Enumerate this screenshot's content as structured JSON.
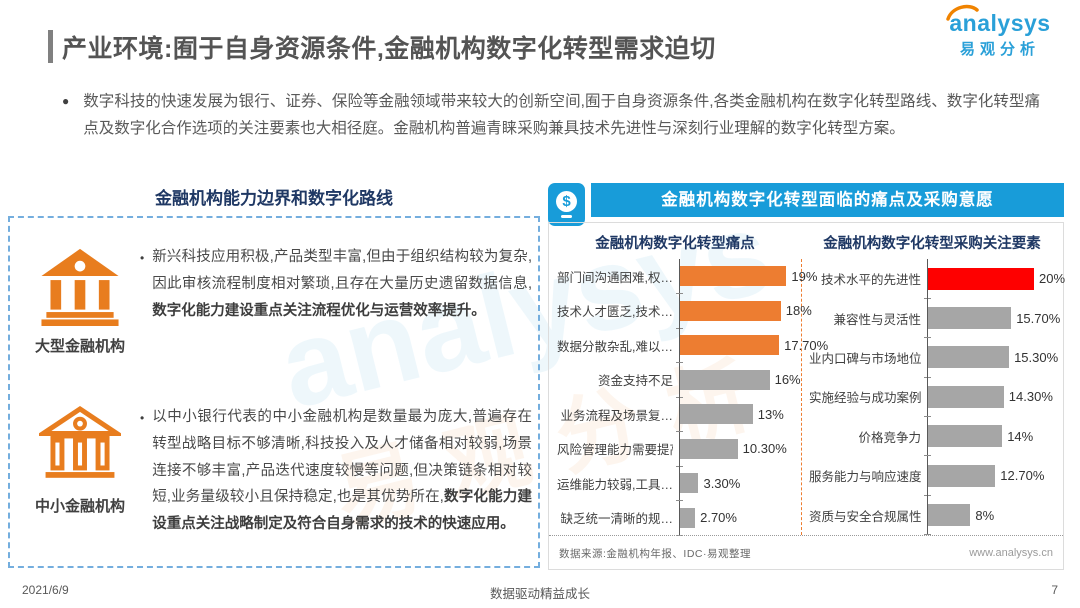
{
  "header": {
    "title": "产业环境:囿于自身资源条件,金融机构数字化转型需求迫切",
    "logo_en": "analysys",
    "logo_cn": "易观分析"
  },
  "intro": "数字科技的快速发展为银行、证券、保险等金融领域带来较大的创新空间,囿于自身资源条件,各类金融机构在数字化转型路线、数字化转型痛点及数字化合作选项的关注要素也大相径庭。金融机构普遍青睐采购兼具技术先进性与深刻行业理解的数字化转型方案。",
  "watermark": {
    "en": "analysys",
    "cn": "易观分析"
  },
  "left_panel": {
    "heading": "金融机构能力边界和数字化路线",
    "items": [
      {
        "icon": "bank-solid-icon",
        "label": "大型金融机构",
        "text": "新兴科技应用积极,产品类型丰富,但由于组织结构较为复杂,因此审核流程制度相对繁琐,且存在大量历史遗留数据信息,",
        "text_bold": "数字化能力建设重点关注流程优化与运营效率提升。"
      },
      {
        "icon": "bank-outline-icon",
        "label": "中小金融机构",
        "text": "以中小银行代表的中小金融机构是数量最为庞大,普遍存在转型战略目标不够清晰,科技投入及人才储备相对较弱,场景连接不够丰富,产品迭代速度较慢等问题,但决策链条相对较短,业务量级较小且保持稳定,也是其优势所在,",
        "text_bold": "数字化能力建设重点关注战略制定及符合自身需求的技术的快速应用。"
      }
    ]
  },
  "right_panel": {
    "header": "金融机构数字化转型面临的痛点及采购意愿",
    "header_icon_glyph": "$",
    "source": "数据来源:金融机构年报、IDC·易观整理",
    "website": "www.analysys.cn"
  },
  "chart_data": [
    {
      "type": "bar",
      "orientation": "horizontal",
      "title": "金融机构数字化转型痛点",
      "categories": [
        "部门间沟通困难,权…",
        "技术人才匮乏,技术…",
        "数据分散杂乱,难以…",
        "资金支持不足",
        "业务流程及场景复…",
        "风险管理能力需要提高",
        "运维能力较弱,工具…",
        "缺乏统一清晰的规…"
      ],
      "values": [
        19,
        18,
        17.7,
        16,
        13,
        10.3,
        3.3,
        2.7
      ],
      "labels": [
        "19%",
        "18%",
        "17.70%",
        "16%",
        "13%",
        "10.30%",
        "3.30%",
        "2.70%"
      ],
      "bar_colors": [
        "#ed7d31",
        "#ed7d31",
        "#ed7d31",
        "#a6a6a6",
        "#a6a6a6",
        "#a6a6a6",
        "#a6a6a6",
        "#a6a6a6"
      ],
      "xlim": [
        0,
        22
      ],
      "grid": false,
      "legend": false
    },
    {
      "type": "bar",
      "orientation": "horizontal",
      "title": "金融机构数字化转型采购关注要素",
      "categories": [
        "技术水平的先进性",
        "兼容性与灵活性",
        "业内口碑与市场地位",
        "实施经验与成功案例",
        "价格竞争力",
        "服务能力与响应速度",
        "资质与安全合规属性"
      ],
      "values": [
        20,
        15.7,
        15.3,
        14.3,
        14,
        12.7,
        8
      ],
      "labels": [
        "20%",
        "15.70%",
        "15.30%",
        "14.30%",
        "14%",
        "12.70%",
        "8%"
      ],
      "bar_colors": [
        "#fe0000",
        "#a6a6a6",
        "#a6a6a6",
        "#a6a6a6",
        "#a6a6a6",
        "#a6a6a6",
        "#a6a6a6"
      ],
      "xlim": [
        0,
        22
      ],
      "grid": false,
      "legend": false
    }
  ],
  "footer": {
    "date": "2021/6/9",
    "slogan": "数据驱动精益成长",
    "page_number": "7"
  },
  "colors": {
    "accent_blue": "#189cd9",
    "accent_orange": "#ed7d31",
    "accent_red": "#fe0000",
    "bar_gray": "#a6a6a6",
    "heading_navy": "#1f3864"
  }
}
